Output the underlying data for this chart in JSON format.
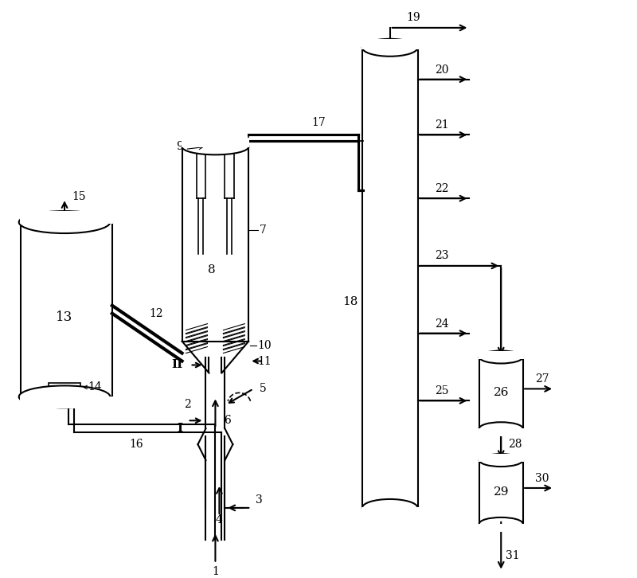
{
  "bg_color": "#ffffff",
  "line_color": "#000000",
  "line_width": 1.5,
  "fig_width": 8.0,
  "fig_height": 7.26
}
